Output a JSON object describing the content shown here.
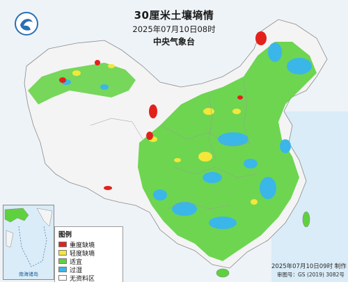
{
  "title": "30厘米土壤墒情",
  "datetime": "2025年07月10日08时",
  "issuer": "中央气象台",
  "legend": {
    "title": "图例",
    "items": [
      {
        "label": "重度缺墒",
        "color": "#e3211c"
      },
      {
        "label": "轻度缺墒",
        "color": "#f5e63a"
      },
      {
        "label": "适宜",
        "color": "#5fd13f"
      },
      {
        "label": "过湿",
        "color": "#3bb6e8"
      },
      {
        "label": "无资料区",
        "color": "#ffffff"
      }
    ]
  },
  "inset_label": "南海诸岛",
  "issue_time": "2025年07月10日09时 制作",
  "review_number": "审图号：GS (2019) 3082号",
  "colors": {
    "ocean": "#d9ecf7",
    "border": "#8a8a8a",
    "severe": "#e3211c",
    "light": "#f5e63a",
    "suitable": "#5fd13f",
    "wet": "#3bb6e8"
  }
}
